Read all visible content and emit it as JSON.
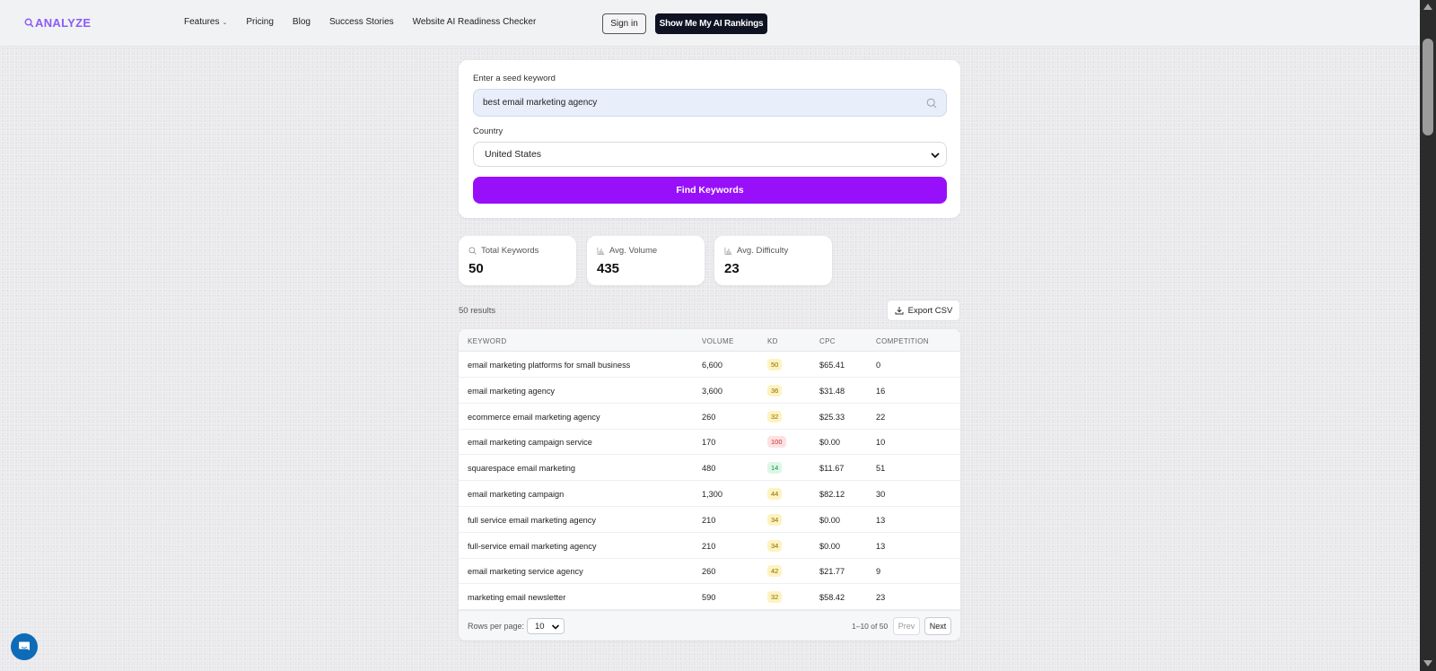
{
  "header": {
    "logo": "ANALYZE",
    "nav": [
      {
        "label": "Features",
        "has_dropdown": true
      },
      {
        "label": "Pricing"
      },
      {
        "label": "Blog"
      },
      {
        "label": "Success Stories"
      },
      {
        "label": "Website AI Readiness Checker"
      }
    ],
    "signin_label": "Sign in",
    "cta_label": "Show Me My AI Rankings"
  },
  "search": {
    "seed_label": "Enter a seed keyword",
    "seed_value": "best email marketing agency",
    "country_label": "Country",
    "country_value": "United States",
    "submit_label": "Find Keywords"
  },
  "stats": [
    {
      "label": "Total Keywords",
      "value": "50",
      "icon": "search-icon"
    },
    {
      "label": "Avg. Volume",
      "value": "435",
      "icon": "bar-chart-icon"
    },
    {
      "label": "Avg. Difficulty",
      "value": "23",
      "icon": "bar-chart-icon"
    }
  ],
  "results": {
    "count_text": "50 results",
    "export_label": "Export CSV"
  },
  "table": {
    "columns": [
      "KEYWORD",
      "VOLUME",
      "KD",
      "CPC",
      "COMPETITION"
    ],
    "rows": [
      {
        "keyword": "email marketing platforms for small business",
        "volume": "6,600",
        "kd": "50",
        "kd_level": "yellow",
        "cpc": "$65.41",
        "competition": "0"
      },
      {
        "keyword": "email marketing agency",
        "volume": "3,600",
        "kd": "36",
        "kd_level": "yellow",
        "cpc": "$31.48",
        "competition": "16"
      },
      {
        "keyword": "ecommerce email marketing agency",
        "volume": "260",
        "kd": "32",
        "kd_level": "yellow",
        "cpc": "$25.33",
        "competition": "22"
      },
      {
        "keyword": "email marketing campaign service",
        "volume": "170",
        "kd": "100",
        "kd_level": "red",
        "cpc": "$0.00",
        "competition": "10"
      },
      {
        "keyword": "squarespace email marketing",
        "volume": "480",
        "kd": "14",
        "kd_level": "green",
        "cpc": "$11.67",
        "competition": "51"
      },
      {
        "keyword": "email marketing campaign",
        "volume": "1,300",
        "kd": "44",
        "kd_level": "yellow",
        "cpc": "$82.12",
        "competition": "30"
      },
      {
        "keyword": "full service email marketing agency",
        "volume": "210",
        "kd": "34",
        "kd_level": "yellow",
        "cpc": "$0.00",
        "competition": "13"
      },
      {
        "keyword": "full-service email marketing agency",
        "volume": "210",
        "kd": "34",
        "kd_level": "yellow",
        "cpc": "$0.00",
        "competition": "13"
      },
      {
        "keyword": "email marketing service agency",
        "volume": "260",
        "kd": "42",
        "kd_level": "yellow",
        "cpc": "$21.77",
        "competition": "9"
      },
      {
        "keyword": "marketing email newsletter",
        "volume": "590",
        "kd": "32",
        "kd_level": "yellow",
        "cpc": "$58.42",
        "competition": "23"
      }
    ],
    "footer": {
      "rows_per_page_label": "Rows per page:",
      "rows_per_page_value": "10",
      "page_info": "1–10 of 50",
      "prev_label": "Prev",
      "next_label": "Next"
    }
  },
  "colors": {
    "brand": "#8b5cf6",
    "primary_button": "#9810fa",
    "cta_dark": "#0f1222",
    "chat_bubble": "#0e6bb8"
  }
}
